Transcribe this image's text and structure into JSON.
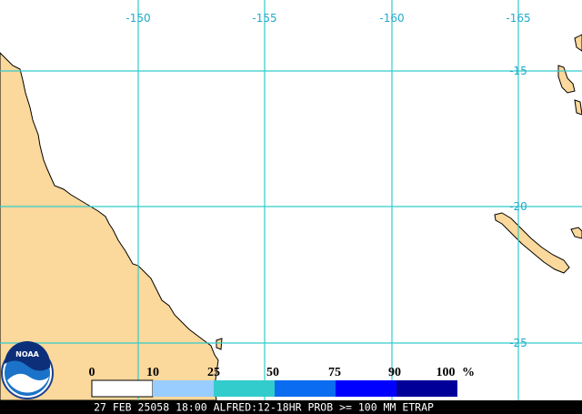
{
  "map": {
    "longitude_labels": [
      "-150",
      "-155",
      "-160",
      "-165"
    ],
    "latitude_labels": [
      "-15",
      "-20",
      "-25"
    ],
    "legend": {
      "labels": [
        "0",
        "10",
        "25",
        "50",
        "75",
        "90",
        "100"
      ],
      "unit": "%"
    },
    "logo": "NOAA",
    "footer": "27 FEB 25058 18:00 ALFRED:12-18HR PROB >= 100 MM ETRAP"
  }
}
